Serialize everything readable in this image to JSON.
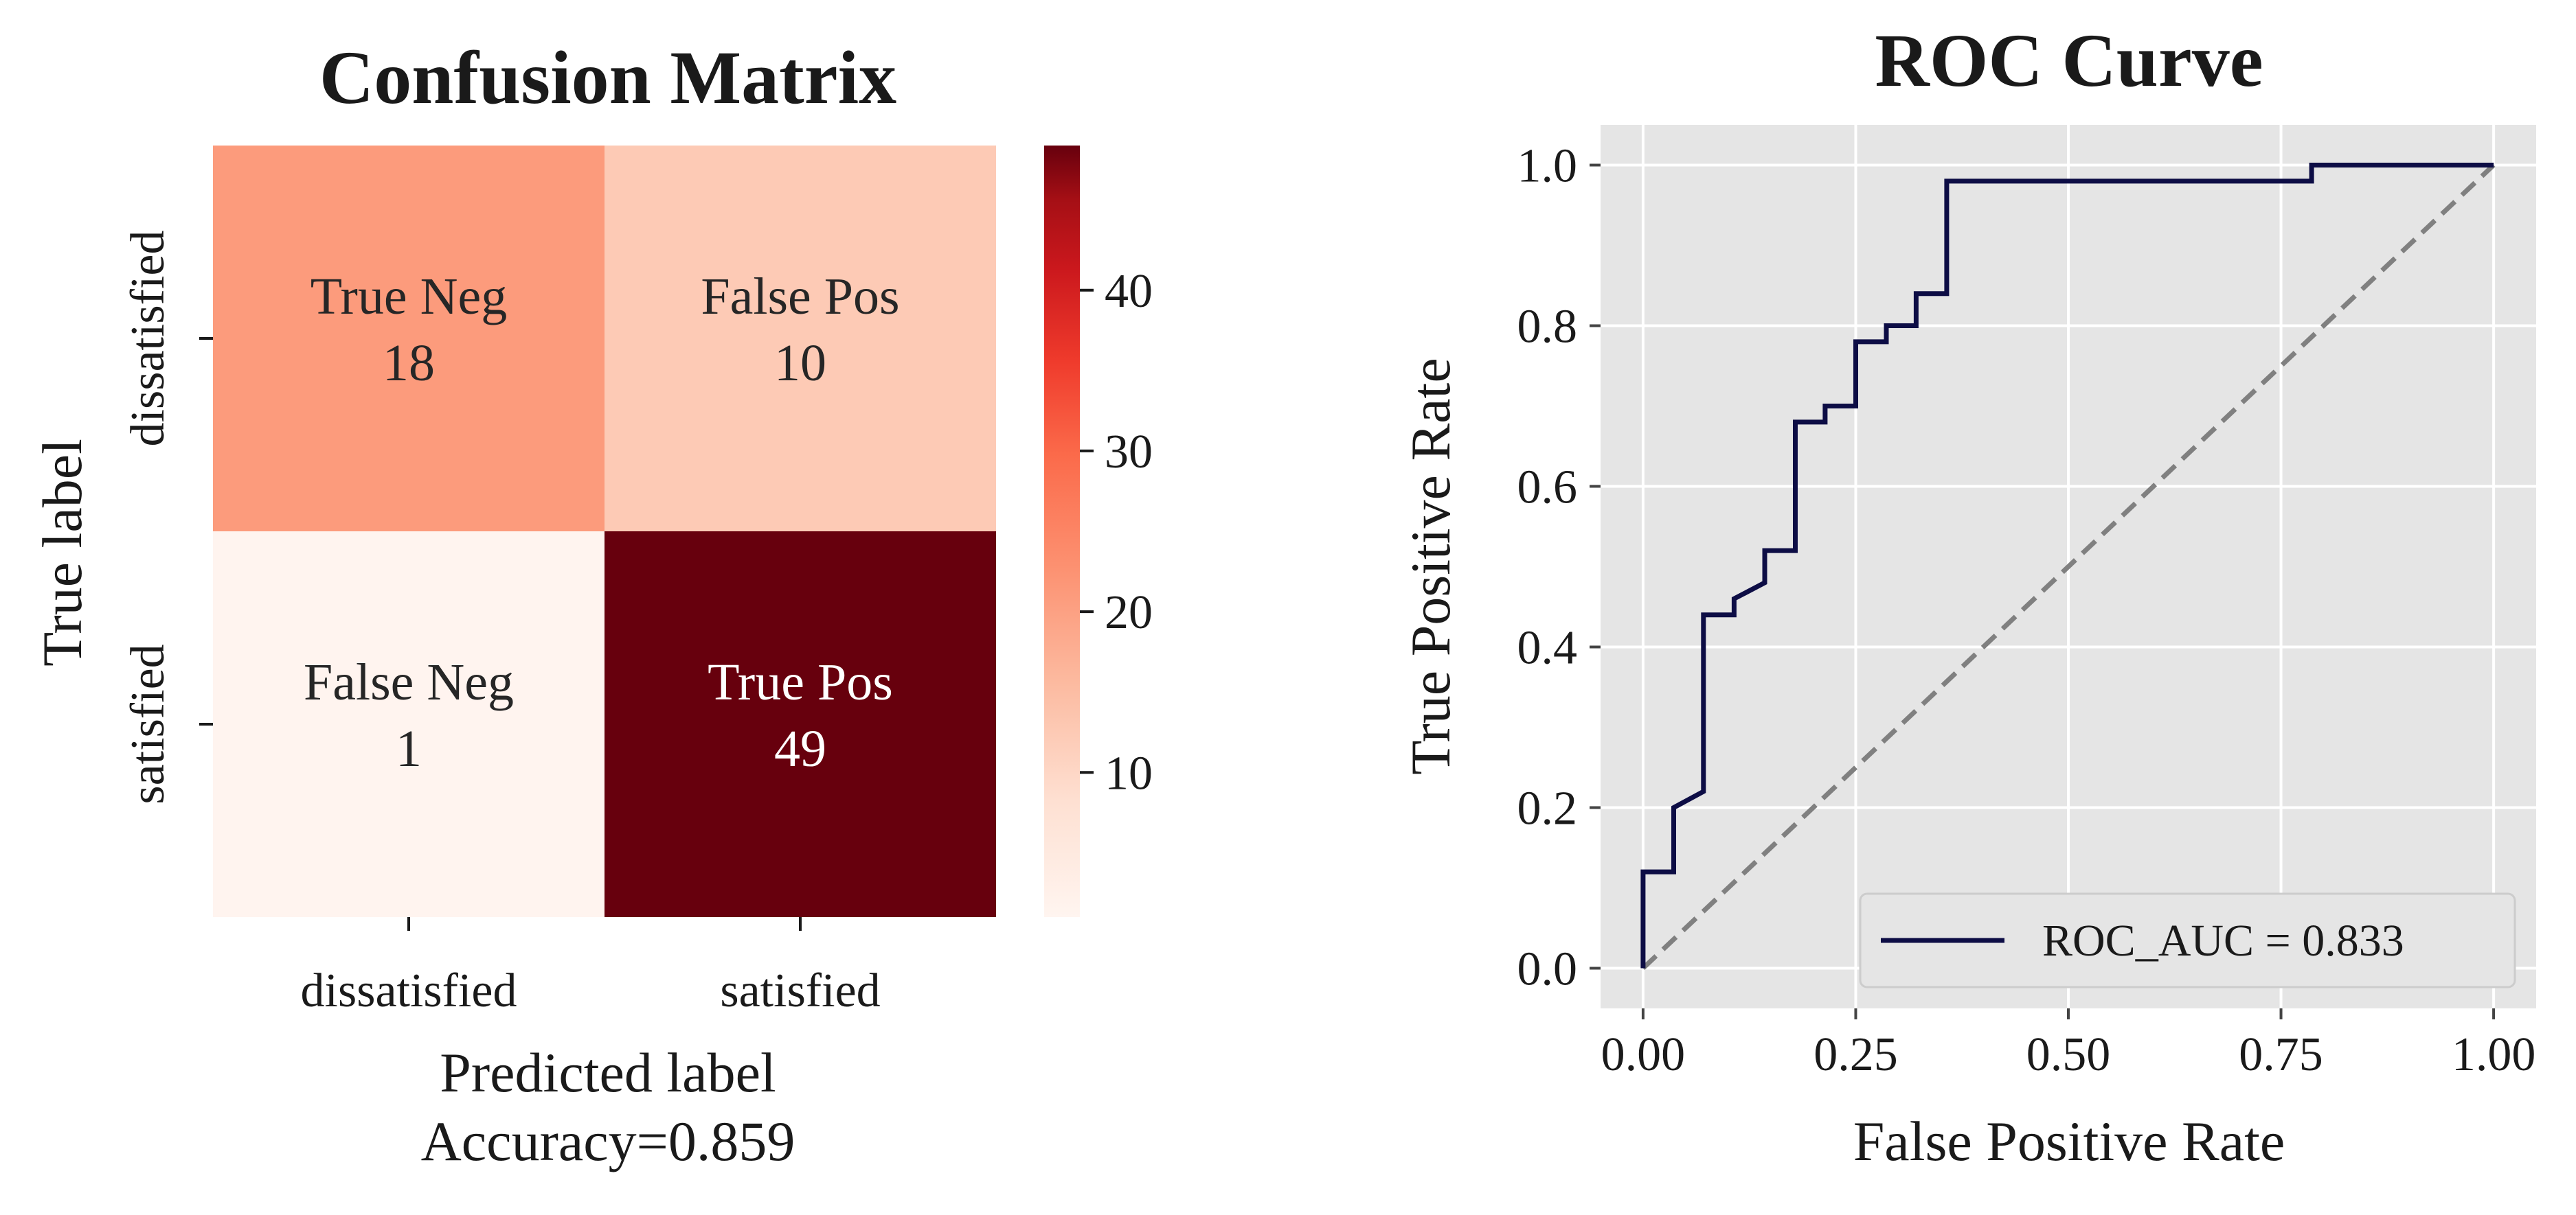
{
  "chart_data": [
    {
      "type": "heatmap",
      "title": "Confusion Matrix",
      "xlabel": "Predicted label",
      "xlabel_note": "Accuracy=0.859",
      "ylabel": "True label",
      "x_categories": [
        "dissatisfied",
        "satisfied"
      ],
      "y_categories": [
        "dissatisfied",
        "satisfied"
      ],
      "cells": [
        [
          {
            "label": "True Neg",
            "value": 18
          },
          {
            "label": "False Pos",
            "value": 10
          }
        ],
        [
          {
            "label": "False Neg",
            "value": 1
          },
          {
            "label": "True Pos",
            "value": 49
          }
        ]
      ],
      "colormap": "Reds",
      "colorbar": {
        "ticks": [
          10,
          20,
          30,
          40
        ],
        "range": [
          1,
          49
        ]
      },
      "colors": {
        "True Neg": "#fc9b7c",
        "False Pos": "#fdcab5",
        "False Neg": "#fff4ef",
        "True Pos": "#67000d"
      }
    },
    {
      "type": "line",
      "title": "ROC Curve",
      "xlabel": "False Positive Rate",
      "ylabel": "True Positive Rate",
      "xlim": [
        -0.05,
        1.05
      ],
      "ylim": [
        -0.05,
        1.05
      ],
      "xticks": [
        "0.00",
        "0.25",
        "0.50",
        "0.75",
        "1.00"
      ],
      "yticks": [
        "0.0",
        "0.2",
        "0.4",
        "0.6",
        "0.8",
        "1.0"
      ],
      "grid": true,
      "legend_position": "lower-right",
      "series": [
        {
          "name": "ROC_AUC = 0.833",
          "color": "#0d0d45",
          "points": [
            [
              0.0,
              0.0
            ],
            [
              0.0,
              0.12
            ],
            [
              0.036,
              0.12
            ],
            [
              0.036,
              0.2
            ],
            [
              0.071,
              0.22
            ],
            [
              0.071,
              0.44
            ],
            [
              0.107,
              0.44
            ],
            [
              0.107,
              0.46
            ],
            [
              0.143,
              0.48
            ],
            [
              0.143,
              0.52
            ],
            [
              0.179,
              0.52
            ],
            [
              0.179,
              0.68
            ],
            [
              0.214,
              0.68
            ],
            [
              0.214,
              0.7
            ],
            [
              0.25,
              0.7
            ],
            [
              0.25,
              0.78
            ],
            [
              0.286,
              0.78
            ],
            [
              0.286,
              0.8
            ],
            [
              0.321,
              0.8
            ],
            [
              0.321,
              0.84
            ],
            [
              0.357,
              0.84
            ],
            [
              0.357,
              0.98
            ],
            [
              0.786,
              0.98
            ],
            [
              0.786,
              1.0
            ],
            [
              1.0,
              1.0
            ]
          ]
        }
      ],
      "reference_line": {
        "points": [
          [
            0.0,
            0.0
          ],
          [
            1.0,
            1.0
          ]
        ],
        "color": "#808080",
        "style": "dashed"
      }
    }
  ]
}
